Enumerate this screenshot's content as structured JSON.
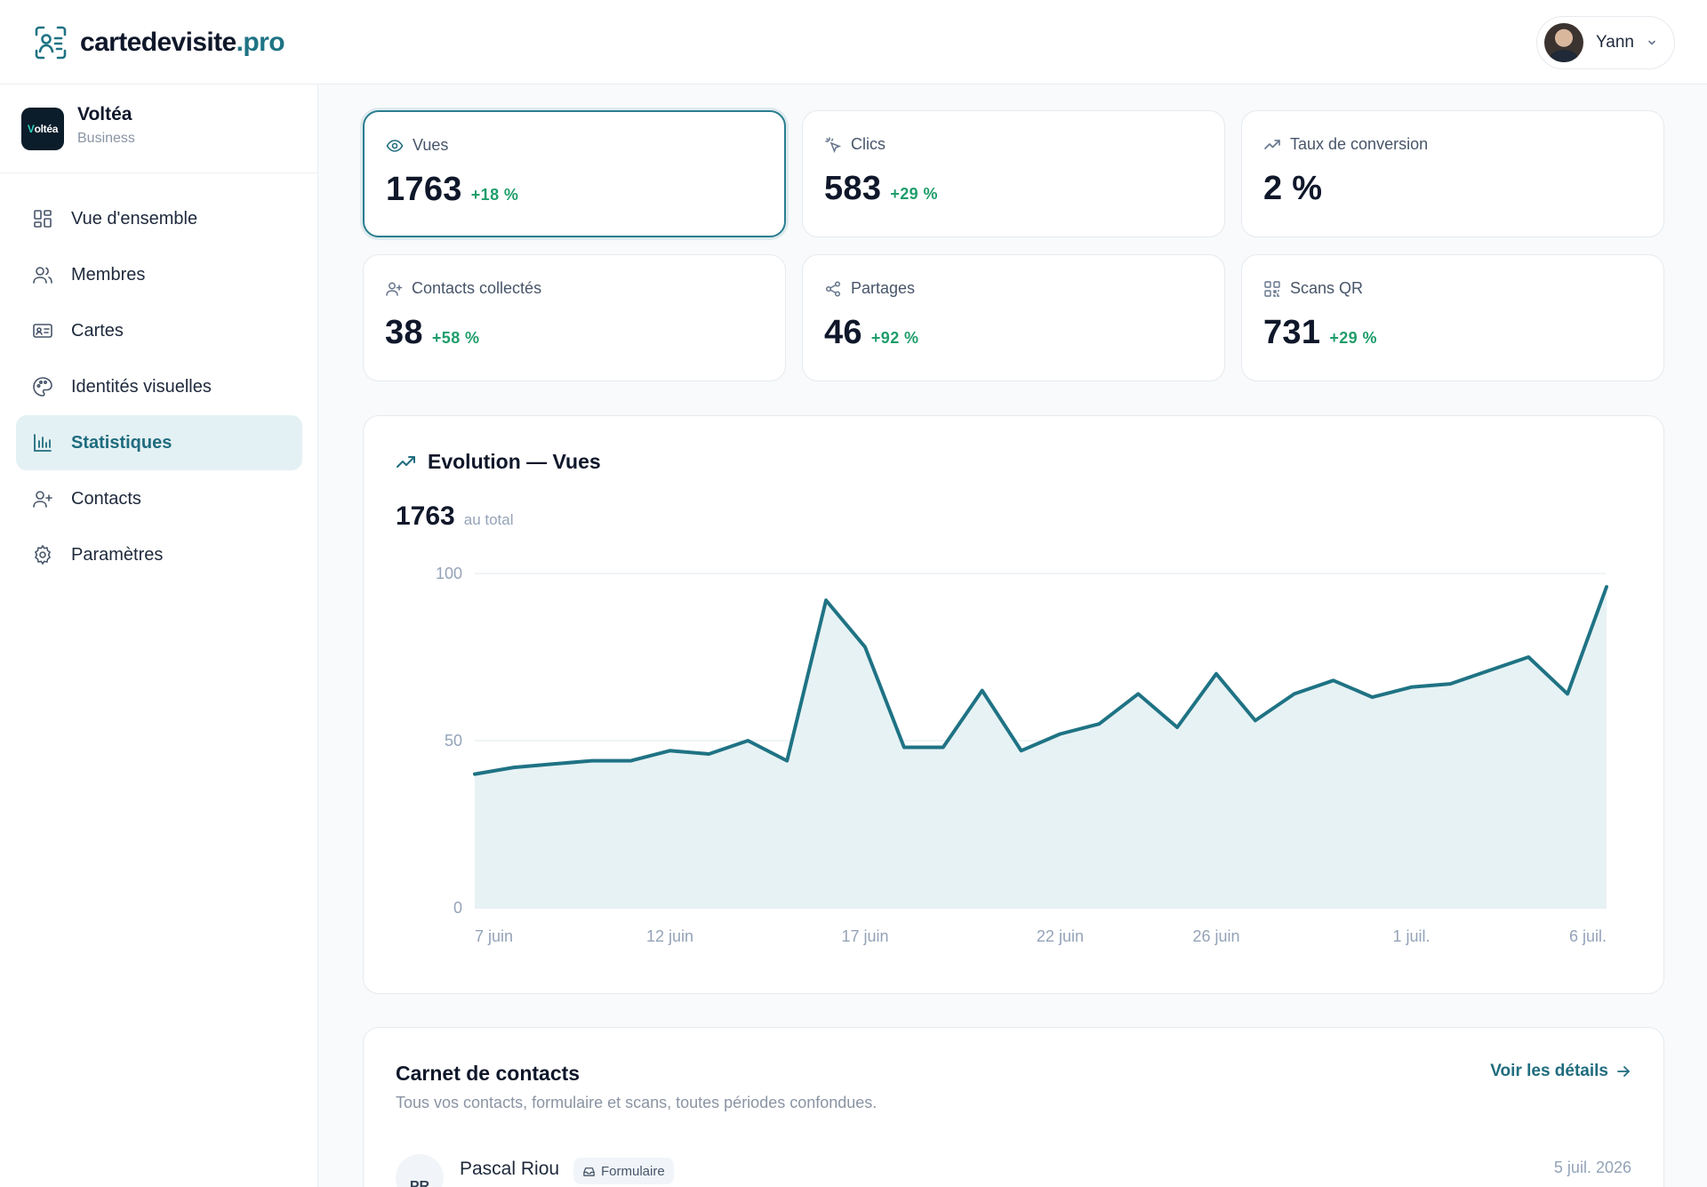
{
  "brand": {
    "name": "cartedevisite",
    "tld": ".pro"
  },
  "user": {
    "name": "Yann"
  },
  "org": {
    "logo_text": "Voltéa",
    "name": "Voltéa",
    "plan": "Business"
  },
  "nav": [
    {
      "label": "Vue d'ensemble",
      "icon": "dashboard-icon",
      "active": false
    },
    {
      "label": "Membres",
      "icon": "users-icon",
      "active": false
    },
    {
      "label": "Cartes",
      "icon": "id-card-icon",
      "active": false
    },
    {
      "label": "Identités visuelles",
      "icon": "palette-icon",
      "active": false
    },
    {
      "label": "Statistiques",
      "icon": "bar-chart-icon",
      "active": true
    },
    {
      "label": "Contacts",
      "icon": "user-plus-icon",
      "active": false
    },
    {
      "label": "Paramètres",
      "icon": "gear-icon",
      "active": false
    }
  ],
  "kpis": [
    {
      "label": "Vues",
      "icon": "eye-icon",
      "value": "1763",
      "delta": "+18 %",
      "selected": true
    },
    {
      "label": "Clics",
      "icon": "pointer-click-icon",
      "value": "583",
      "delta": "+29 %",
      "selected": false
    },
    {
      "label": "Taux de conversion",
      "icon": "trending-up-icon",
      "value": "2 %",
      "delta": "",
      "selected": false
    },
    {
      "label": "Contacts collectés",
      "icon": "user-plus-icon",
      "value": "38",
      "delta": "+58 %",
      "selected": false
    },
    {
      "label": "Partages",
      "icon": "share-icon",
      "value": "46",
      "delta": "+92 %",
      "selected": false
    },
    {
      "label": "Scans QR",
      "icon": "qr-code-icon",
      "value": "731",
      "delta": "+29 %",
      "selected": false
    }
  ],
  "chart": {
    "title": "Evolution — Vues",
    "total": "1763",
    "total_label": "au total"
  },
  "chart_data": {
    "type": "area",
    "title": "Evolution — Vues",
    "x": [
      "7 juin",
      "8 juin",
      "9 juin",
      "10 juin",
      "11 juin",
      "12 juin",
      "13 juin",
      "14 juin",
      "15 juin",
      "16 juin",
      "17 juin",
      "18 juin",
      "19 juin",
      "20 juin",
      "21 juin",
      "22 juin",
      "23 juin",
      "24 juin",
      "25 juin",
      "26 juin",
      "27 juin",
      "28 juin",
      "29 juin",
      "30 juin",
      "1 juil.",
      "2 juil.",
      "3 juil.",
      "4 juil.",
      "5 juil.",
      "6 juil."
    ],
    "values": [
      40,
      42,
      43,
      44,
      44,
      47,
      46,
      50,
      44,
      92,
      78,
      48,
      48,
      65,
      47,
      52,
      55,
      64,
      54,
      70,
      56,
      64,
      68,
      63,
      66,
      67,
      71,
      75,
      64,
      96
    ],
    "x_tick_labels": [
      "7 juin",
      "12 juin",
      "17 juin",
      "22 juin",
      "26 juin",
      "1 juil.",
      "6 juil."
    ],
    "y_ticks": [
      0,
      50,
      100
    ],
    "ylim": [
      0,
      100
    ],
    "grid": true,
    "legend": "none",
    "color": "#1f7384"
  },
  "contacts": {
    "title": "Carnet de contacts",
    "subtitle": "Tous vos contacts, formulaire et scans, toutes périodes confondues.",
    "details_link": "Voir les détails",
    "rows": [
      {
        "initials": "PR",
        "name": "Pascal Riou",
        "source": "Formulaire",
        "date": "5 juil. 2026"
      }
    ]
  }
}
